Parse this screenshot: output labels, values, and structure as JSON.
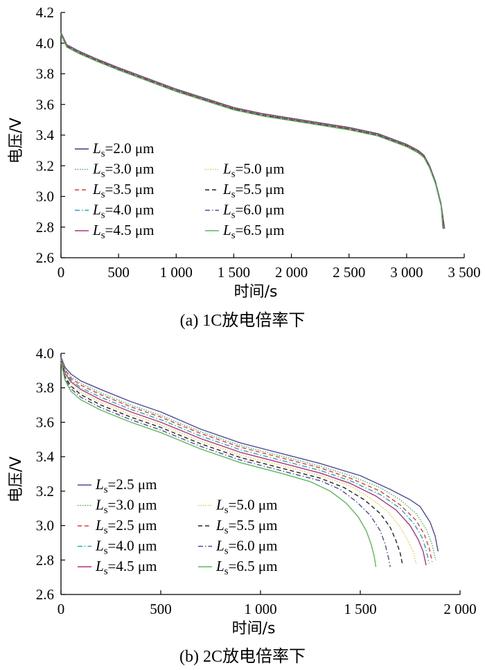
{
  "chart_data": [
    {
      "id": "a",
      "type": "line",
      "caption": "(a) 1C放电倍率下",
      "xlabel": "时间/s",
      "ylabel": "电压/V",
      "xlim": [
        0,
        3500
      ],
      "ylim": [
        2.6,
        4.2
      ],
      "xticks": [
        0,
        500,
        1000,
        1500,
        2000,
        2500,
        3000,
        3500
      ],
      "xtick_labels": [
        "0",
        "500",
        "1 000",
        "1 500",
        "2 000",
        "2 500",
        "3 000",
        "3 500"
      ],
      "yticks": [
        2.6,
        2.8,
        3.0,
        3.2,
        3.4,
        3.6,
        3.8,
        4.0,
        4.2
      ],
      "ytick_labels": [
        "2.6",
        "2.8",
        "3.0",
        "3.2",
        "3.4",
        "3.6",
        "3.8",
        "4.0",
        "4.2"
      ],
      "grid": false,
      "legend_position": "bottom-left",
      "series": [
        {
          "prefix": "L",
          "sub": "s",
          "name": "=2.0 μm",
          "color": "#3a3a7a",
          "dash": "",
          "x": [
            0,
            50,
            150,
            300,
            500,
            750,
            1000,
            1250,
            1500,
            1750,
            2000,
            2250,
            2500,
            2750,
            3000,
            3100,
            3150,
            3200,
            3250,
            3300,
            3330
          ],
          "y": [
            4.07,
            3.99,
            3.95,
            3.9,
            3.84,
            3.77,
            3.7,
            3.64,
            3.58,
            3.54,
            3.51,
            3.48,
            3.45,
            3.41,
            3.34,
            3.3,
            3.27,
            3.2,
            3.1,
            2.95,
            2.79
          ]
        },
        {
          "prefix": "L",
          "sub": "s",
          "name": "=3.0 μm",
          "color": "#4caf50",
          "dash": "1.5,2",
          "x": [
            0,
            50,
            150,
            300,
            500,
            750,
            1000,
            1250,
            1500,
            1750,
            2000,
            2250,
            2500,
            2750,
            3000,
            3100,
            3150,
            3200,
            3250,
            3300,
            3328
          ],
          "y": [
            4.068,
            3.988,
            3.948,
            3.898,
            3.838,
            3.768,
            3.698,
            3.638,
            3.578,
            3.538,
            3.508,
            3.478,
            3.448,
            3.408,
            3.338,
            3.298,
            3.268,
            3.198,
            3.098,
            2.948,
            2.79
          ]
        },
        {
          "prefix": "L",
          "sub": "s",
          "name": "=3.5 μm",
          "color": "#e53935",
          "dash": "6,4",
          "x": [
            0,
            50,
            150,
            300,
            500,
            750,
            1000,
            1250,
            1500,
            1750,
            2000,
            2250,
            2500,
            2750,
            3000,
            3100,
            3150,
            3200,
            3250,
            3300,
            3326
          ],
          "y": [
            4.066,
            3.986,
            3.946,
            3.896,
            3.836,
            3.766,
            3.696,
            3.636,
            3.576,
            3.536,
            3.506,
            3.476,
            3.446,
            3.406,
            3.336,
            3.296,
            3.266,
            3.196,
            3.096,
            2.946,
            2.79
          ]
        },
        {
          "prefix": "L",
          "sub": "s",
          "name": "=4.0 μm",
          "color": "#26a6b8",
          "dash": "7,3,1.5,3",
          "x": [
            0,
            50,
            150,
            300,
            500,
            750,
            1000,
            1250,
            1500,
            1750,
            2000,
            2250,
            2500,
            2750,
            3000,
            3100,
            3150,
            3200,
            3250,
            3300,
            3324
          ],
          "y": [
            4.064,
            3.984,
            3.944,
            3.894,
            3.834,
            3.764,
            3.694,
            3.634,
            3.574,
            3.534,
            3.504,
            3.474,
            3.444,
            3.404,
            3.334,
            3.294,
            3.264,
            3.194,
            3.094,
            2.944,
            2.79
          ]
        },
        {
          "prefix": "L",
          "sub": "s",
          "name": "=4.5 μm",
          "color": "#b0307a",
          "dash": "",
          "x": [
            0,
            50,
            150,
            300,
            500,
            750,
            1000,
            1250,
            1500,
            1750,
            2000,
            2250,
            2500,
            2750,
            3000,
            3100,
            3150,
            3200,
            3250,
            3300,
            3322
          ],
          "y": [
            4.062,
            3.982,
            3.942,
            3.892,
            3.832,
            3.762,
            3.692,
            3.632,
            3.572,
            3.532,
            3.502,
            3.472,
            3.442,
            3.402,
            3.332,
            3.292,
            3.262,
            3.192,
            3.092,
            2.942,
            2.79
          ]
        },
        {
          "prefix": "L",
          "sub": "s",
          "name": "=5.0 μm",
          "color": "#e6c84a",
          "dash": "1.5,2",
          "x": [
            0,
            50,
            150,
            300,
            500,
            750,
            1000,
            1250,
            1500,
            1750,
            2000,
            2250,
            2500,
            2750,
            3000,
            3100,
            3150,
            3200,
            3250,
            3300,
            3320
          ],
          "y": [
            4.06,
            3.98,
            3.94,
            3.89,
            3.83,
            3.76,
            3.69,
            3.63,
            3.57,
            3.53,
            3.5,
            3.47,
            3.44,
            3.4,
            3.33,
            3.29,
            3.26,
            3.19,
            3.09,
            2.94,
            2.79
          ]
        },
        {
          "prefix": "L",
          "sub": "s",
          "name": "=5.5 μm",
          "color": "#222222",
          "dash": "6,4",
          "x": [
            0,
            50,
            150,
            300,
            500,
            750,
            1000,
            1250,
            1500,
            1750,
            2000,
            2250,
            2500,
            2750,
            3000,
            3100,
            3150,
            3200,
            3250,
            3300,
            3318
          ],
          "y": [
            4.058,
            3.978,
            3.938,
            3.888,
            3.828,
            3.758,
            3.688,
            3.628,
            3.568,
            3.528,
            3.498,
            3.468,
            3.438,
            3.398,
            3.328,
            3.288,
            3.258,
            3.188,
            3.088,
            2.938,
            2.79
          ]
        },
        {
          "prefix": "L",
          "sub": "s",
          "name": "=6.0 μm",
          "color": "#4a4aa0",
          "dash": "7,3,1.5,3",
          "x": [
            0,
            50,
            150,
            300,
            500,
            750,
            1000,
            1250,
            1500,
            1750,
            2000,
            2250,
            2500,
            2750,
            3000,
            3100,
            3150,
            3200,
            3250,
            3300,
            3316
          ],
          "y": [
            4.056,
            3.976,
            3.936,
            3.886,
            3.826,
            3.756,
            3.686,
            3.626,
            3.566,
            3.526,
            3.496,
            3.466,
            3.436,
            3.396,
            3.326,
            3.286,
            3.256,
            3.186,
            3.086,
            2.936,
            2.79
          ]
        },
        {
          "prefix": "L",
          "sub": "s",
          "name": "=6.5 μm",
          "color": "#5cb85c",
          "dash": "",
          "x": [
            0,
            50,
            150,
            300,
            500,
            750,
            1000,
            1250,
            1500,
            1750,
            2000,
            2250,
            2500,
            2750,
            3000,
            3100,
            3150,
            3200,
            3250,
            3300,
            3314
          ],
          "y": [
            4.054,
            3.974,
            3.934,
            3.884,
            3.824,
            3.754,
            3.684,
            3.624,
            3.564,
            3.524,
            3.494,
            3.464,
            3.434,
            3.394,
            3.324,
            3.284,
            3.254,
            3.184,
            3.084,
            2.934,
            2.79
          ]
        }
      ]
    },
    {
      "id": "b",
      "type": "line",
      "caption": "(b) 2C放电倍率下",
      "xlabel": "时间/s",
      "ylabel": "电压/V",
      "xlim": [
        0,
        2000
      ],
      "ylim": [
        2.6,
        4.0
      ],
      "xticks": [
        0,
        500,
        1000,
        1500,
        2000
      ],
      "xtick_labels": [
        "0",
        "500",
        "1 000",
        "1 500",
        "2 000"
      ],
      "yticks": [
        2.6,
        2.8,
        3.0,
        3.2,
        3.4,
        3.6,
        3.8,
        4.0
      ],
      "ytick_labels": [
        "2.6",
        "2.8",
        "3.0",
        "3.2",
        "3.4",
        "3.6",
        "3.8",
        "4.0"
      ],
      "grid": false,
      "legend_position": "bottom-left",
      "series": [
        {
          "prefix": "L",
          "sub": "s",
          "name": "=2.5 μm",
          "color": "#4a4a9a",
          "dash": "",
          "x": [
            0,
            20,
            50,
            100,
            200,
            350,
            500,
            700,
            900,
            1100,
            1300,
            1500,
            1650,
            1750,
            1800,
            1850,
            1875,
            1890
          ],
          "y": [
            3.98,
            3.92,
            3.88,
            3.84,
            3.79,
            3.72,
            3.66,
            3.56,
            3.48,
            3.42,
            3.36,
            3.29,
            3.21,
            3.15,
            3.11,
            3.02,
            2.94,
            2.85
          ]
        },
        {
          "prefix": "L",
          "sub": "s",
          "name": "=3.0 μm",
          "color": "#4caf50",
          "dash": "1.5,2",
          "x": [
            0,
            20,
            50,
            100,
            200,
            350,
            500,
            700,
            900,
            1100,
            1300,
            1450,
            1600,
            1700,
            1780,
            1830,
            1860,
            1878
          ],
          "y": [
            3.976,
            3.91,
            3.865,
            3.825,
            3.77,
            3.7,
            3.64,
            3.545,
            3.465,
            3.405,
            3.345,
            3.29,
            3.22,
            3.15,
            3.07,
            2.98,
            2.89,
            2.8
          ]
        },
        {
          "prefix": "L",
          "sub": "s",
          "name": "=2.5 μm",
          "color": "#e53935",
          "dash": "6,4",
          "x": [
            0,
            20,
            50,
            100,
            200,
            350,
            500,
            700,
            900,
            1100,
            1300,
            1450,
            1600,
            1700,
            1780,
            1820,
            1845,
            1860
          ],
          "y": [
            3.972,
            3.905,
            3.855,
            3.815,
            3.76,
            3.69,
            3.63,
            3.535,
            3.455,
            3.395,
            3.335,
            3.275,
            3.2,
            3.12,
            3.03,
            2.95,
            2.87,
            2.79
          ]
        },
        {
          "prefix": "L",
          "sub": "s",
          "name": "=4.0 μm",
          "color": "#26a6b8",
          "dash": "7,3,1.5,3",
          "x": [
            0,
            20,
            50,
            100,
            200,
            350,
            500,
            700,
            900,
            1100,
            1300,
            1450,
            1600,
            1700,
            1770,
            1810,
            1830,
            1845
          ],
          "y": [
            3.968,
            3.895,
            3.845,
            3.8,
            3.745,
            3.675,
            3.615,
            3.52,
            3.44,
            3.38,
            3.32,
            3.26,
            3.18,
            3.1,
            3.01,
            2.93,
            2.86,
            2.78
          ]
        },
        {
          "prefix": "L",
          "sub": "s",
          "name": "=4.5 μm",
          "color": "#b0307a",
          "dash": "",
          "x": [
            0,
            20,
            50,
            100,
            200,
            350,
            500,
            700,
            900,
            1100,
            1300,
            1450,
            1580,
            1680,
            1750,
            1790,
            1815,
            1830
          ],
          "y": [
            3.964,
            3.885,
            3.835,
            3.79,
            3.73,
            3.66,
            3.6,
            3.505,
            3.425,
            3.365,
            3.305,
            3.245,
            3.17,
            3.09,
            3.0,
            2.92,
            2.85,
            2.77
          ]
        },
        {
          "prefix": "L",
          "sub": "s",
          "name": "=5.0 μm",
          "color": "#e6c84a",
          "dash": "1.5,2",
          "x": [
            0,
            20,
            50,
            100,
            200,
            350,
            500,
            700,
            900,
            1100,
            1300,
            1450,
            1550,
            1640,
            1700,
            1740,
            1765,
            1780
          ],
          "y": [
            3.96,
            3.875,
            3.825,
            3.775,
            3.715,
            3.645,
            3.585,
            3.49,
            3.41,
            3.35,
            3.29,
            3.23,
            3.16,
            3.08,
            2.99,
            2.91,
            2.85,
            2.78
          ]
        },
        {
          "prefix": "L",
          "sub": "s",
          "name": "=5.5 μm",
          "color": "#222222",
          "dash": "6,4",
          "x": [
            0,
            20,
            50,
            100,
            200,
            350,
            500,
            700,
            900,
            1100,
            1300,
            1420,
            1520,
            1600,
            1650,
            1680,
            1700,
            1712
          ],
          "y": [
            3.956,
            3.865,
            3.81,
            3.76,
            3.7,
            3.63,
            3.57,
            3.475,
            3.395,
            3.335,
            3.275,
            3.22,
            3.15,
            3.07,
            2.99,
            2.91,
            2.84,
            2.77
          ]
        },
        {
          "prefix": "L",
          "sub": "s",
          "name": "=6.0 μm",
          "color": "#4a4aa0",
          "dash": "7,3,1.5,3",
          "x": [
            0,
            20,
            50,
            100,
            200,
            350,
            500,
            700,
            900,
            1100,
            1300,
            1400,
            1480,
            1550,
            1600,
            1625,
            1640,
            1650
          ],
          "y": [
            3.952,
            3.855,
            3.795,
            3.745,
            3.685,
            3.615,
            3.555,
            3.46,
            3.38,
            3.32,
            3.26,
            3.21,
            3.14,
            3.06,
            2.97,
            2.89,
            2.82,
            2.76
          ]
        },
        {
          "prefix": "L",
          "sub": "s",
          "name": "=6.5 μm",
          "color": "#5cb85c",
          "dash": "",
          "x": [
            0,
            20,
            50,
            100,
            200,
            350,
            500,
            700,
            900,
            1100,
            1250,
            1350,
            1430,
            1490,
            1530,
            1555,
            1570,
            1578
          ],
          "y": [
            3.948,
            3.845,
            3.78,
            3.73,
            3.67,
            3.6,
            3.54,
            3.445,
            3.365,
            3.305,
            3.255,
            3.2,
            3.13,
            3.05,
            2.97,
            2.89,
            2.82,
            2.76
          ]
        }
      ]
    }
  ]
}
